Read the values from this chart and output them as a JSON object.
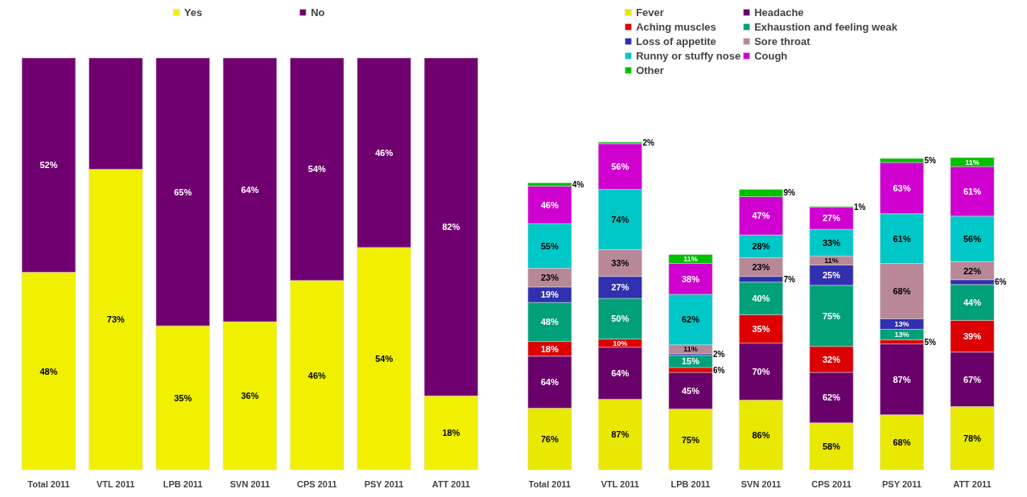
{
  "chart_data": [
    {
      "type": "bar",
      "stacked": true,
      "categories": [
        "Total 2011",
        "VTL 2011",
        "LPB 2011",
        "SVN 2011",
        "CPS 2011",
        "PSY 2011",
        "ATT 2011"
      ],
      "legend": "top",
      "grid": false,
      "tick_labels": "x",
      "series": [
        {
          "name": "Yes",
          "color": "#f0f000",
          "values": [
            48,
            73,
            35,
            36,
            46,
            54,
            18
          ],
          "value_labels": [
            "48%",
            "73%",
            "35%",
            "36%",
            "46%",
            "54%",
            "18%"
          ]
        },
        {
          "name": "No",
          "color": "#700070",
          "values": [
            52,
            27,
            65,
            64,
            54,
            46,
            82
          ],
          "value_labels": [
            "52%",
            null,
            "65%",
            "64%",
            "54%",
            "46%",
            "82%"
          ]
        }
      ]
    },
    {
      "type": "bar",
      "stacked": true,
      "categories": [
        "Total 2011",
        "VTL 2011",
        "LPB 2011",
        "SVN 2011",
        "CPS 2011",
        "PSY 2011",
        "ATT 2011"
      ],
      "legend": "top",
      "grid": false,
      "tick_labels": "x",
      "series": [
        {
          "name": "Fever",
          "color": "#e8e800",
          "values": [
            76,
            87,
            75,
            86,
            58,
            68,
            78
          ],
          "value_labels": [
            "76%",
            "87%",
            "75%",
            "86%",
            "58%",
            "68%",
            "78%"
          ]
        },
        {
          "name": "Headache",
          "color": "#6a006a",
          "values": [
            64,
            64,
            45,
            70,
            62,
            87,
            67
          ],
          "value_labels": [
            "64%",
            "64%",
            "45%",
            "70%",
            "62%",
            "87%",
            "67%"
          ]
        },
        {
          "name": "Aching muscles",
          "color": "#dd0000",
          "values": [
            18,
            10,
            6,
            35,
            32,
            5,
            39
          ],
          "value_labels": [
            "18%",
            "10%",
            "6%",
            "35%",
            "32%",
            "5%",
            "39%"
          ]
        },
        {
          "name": "Exhaustion and feeling weak",
          "color": "#00a078",
          "values": [
            48,
            50,
            15,
            40,
            75,
            13,
            44
          ],
          "value_labels": [
            "48%",
            "50%",
            "15%",
            "40%",
            "75%",
            "13%",
            "44%"
          ]
        },
        {
          "name": "Loss of appetite",
          "color": "#3030b0",
          "values": [
            19,
            27,
            2,
            7,
            25,
            13,
            6
          ],
          "value_labels": [
            "19%",
            "27%",
            "2%",
            "7%",
            "25%",
            "13%",
            "6%"
          ]
        },
        {
          "name": "Sore throat",
          "color": "#b88898",
          "values": [
            23,
            33,
            11,
            23,
            11,
            68,
            22
          ],
          "value_labels": [
            "23%",
            "33%",
            "11%",
            "23%",
            "11%",
            "68%",
            "22%"
          ]
        },
        {
          "name": "Runny or stuffy nose",
          "color": "#00c8c8",
          "values": [
            55,
            74,
            62,
            28,
            33,
            61,
            56
          ],
          "value_labels": [
            "55%",
            "74%",
            "62%",
            "28%",
            "33%",
            "61%",
            "56%"
          ]
        },
        {
          "name": "Cough",
          "color": "#d000d0",
          "values": [
            46,
            56,
            38,
            47,
            27,
            63,
            61
          ],
          "value_labels": [
            "46%",
            "56%",
            "38%",
            "47%",
            "27%",
            "63%",
            "61%"
          ]
        },
        {
          "name": "Other",
          "color": "#00c000",
          "values": [
            4,
            2,
            11,
            9,
            1,
            5,
            11
          ],
          "value_labels": [
            "4%",
            "2%",
            "11%",
            "9%",
            "1%",
            "5%",
            "11%"
          ]
        }
      ]
    }
  ]
}
